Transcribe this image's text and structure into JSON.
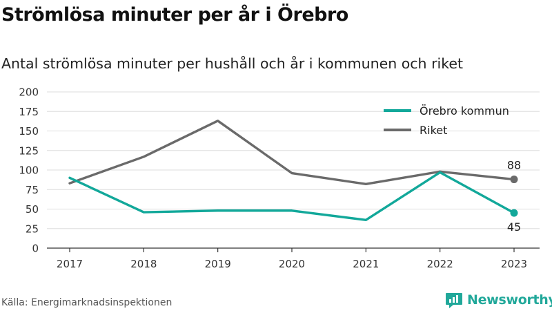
{
  "title": "Strömlösa minuter per år i Örebro",
  "subtitle": "Antal strömlösa minuter per hushåll och år i kommunen och riket",
  "source": "Källa: Energimarknadsinspektionen",
  "brand": "Newsworthy",
  "chart_data": {
    "type": "line",
    "x": [
      "2017",
      "2018",
      "2019",
      "2020",
      "2021",
      "2022",
      "2023"
    ],
    "ylim": [
      0,
      200
    ],
    "yticks": [
      0,
      25,
      50,
      75,
      100,
      125,
      150,
      175,
      200
    ],
    "grid": true,
    "legend_position": "top-right",
    "series": [
      {
        "name": "Örebro kommun",
        "color": "#12a89a",
        "values": [
          90,
          46,
          48,
          48,
          36,
          97,
          45
        ],
        "end_label": "45"
      },
      {
        "name": "Riket",
        "color": "#6a6a6a",
        "values": [
          83,
          117,
          163,
          96,
          82,
          98,
          88
        ],
        "end_label": "88"
      }
    ]
  }
}
